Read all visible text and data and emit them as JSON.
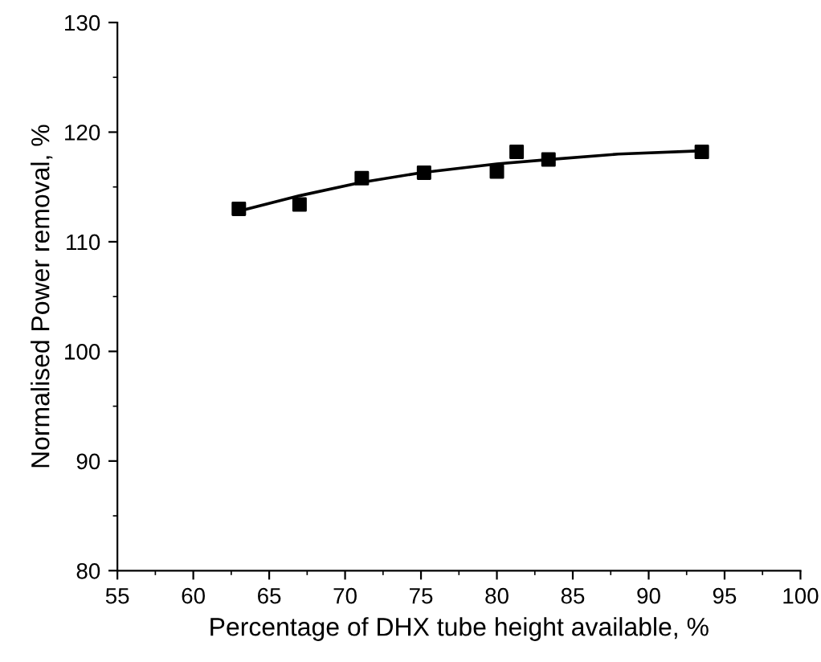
{
  "chart_data": {
    "type": "scatter",
    "xlabel": "Percentage of DHX tube height available, %",
    "ylabel": "Normalised Power removal, %",
    "series": [
      {
        "color": "#000000",
        "marker": "square",
        "x": [
          63.0,
          67.0,
          71.1,
          75.2,
          80.0,
          81.3,
          83.4,
          93.5
        ],
        "values": [
          113.0,
          113.4,
          115.8,
          116.3,
          116.4,
          118.2,
          117.5,
          118.2
        ]
      },
      {
        "type": "line",
        "color": "#000000",
        "marker": "none",
        "line_style": "solid",
        "x": [
          63,
          67,
          71,
          75,
          80,
          83.4,
          88,
          93.5
        ],
        "values": [
          112.8,
          114.2,
          115.4,
          116.3,
          117.1,
          117.5,
          118.0,
          118.3
        ]
      }
    ],
    "xlim": [
      55,
      100
    ],
    "xticks": [
      55,
      60,
      65,
      70,
      75,
      80,
      85,
      90,
      95,
      100
    ],
    "ylim": [
      80,
      130
    ],
    "yticks": [
      80,
      90,
      100,
      110,
      120,
      130
    ],
    "grid": false,
    "legend": false
  }
}
